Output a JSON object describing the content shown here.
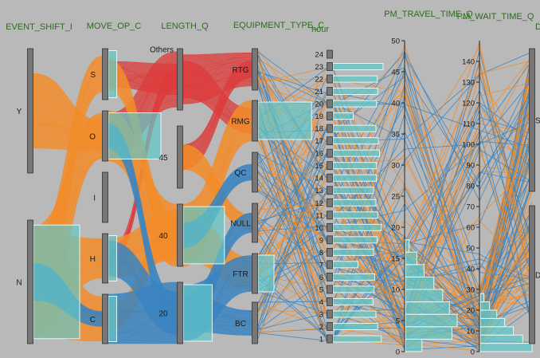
{
  "chart_data": {
    "type": "parallel_coordinates",
    "colors": {
      "orange": "#f28c2a",
      "blue": "#3b84bf",
      "red": "#de3b3b",
      "hist_fill": "#63c7c7",
      "axis_bar": "#777777",
      "background": "#b9b9b9"
    },
    "dimensions": [
      {
        "name": "EVENT_SHIFT_I",
        "kind": "categorical",
        "categories": [
          "Y",
          "N"
        ]
      },
      {
        "name": "MOVE_OP_C",
        "kind": "categorical",
        "categories": [
          "S",
          "O",
          "I",
          "H",
          "C"
        ]
      },
      {
        "name": "LENGTH_Q",
        "kind": "categorical",
        "categories": [
          "Others",
          "45",
          "40",
          "20"
        ]
      },
      {
        "name": "EQUIPMENT_TYPE_C",
        "kind": "categorical",
        "categories": [
          "RTG",
          "RMG",
          "QC",
          "NULL",
          "FTR",
          "BC"
        ]
      },
      {
        "name": "hour",
        "kind": "ordinal",
        "ticks": [
          1,
          2,
          3,
          4,
          5,
          6,
          7,
          8,
          9,
          10,
          11,
          12,
          13,
          14,
          15,
          16,
          17,
          18,
          19,
          20,
          21,
          22,
          23,
          24
        ]
      },
      {
        "name": "PM_TRAVEL_TIME_Q",
        "kind": "numeric",
        "ylim": [
          0,
          50
        ],
        "ticks": [
          0,
          5,
          10,
          15,
          20,
          25,
          30,
          35,
          40,
          45,
          50
        ]
      },
      {
        "name": "PM_WAIT_TIME_Q",
        "kind": "numeric",
        "ylim": [
          0,
          150
        ],
        "ticks": [
          0,
          10,
          20,
          30,
          40,
          50,
          60,
          70,
          80,
          90,
          100,
          110,
          120,
          130,
          140
        ]
      },
      {
        "name": "D",
        "kind": "categorical",
        "categories": [
          "ST",
          "D"
        ]
      }
    ],
    "histograms": {
      "EVENT_SHIFT_I": {
        "Y": 0.0,
        "N": 0.88
      },
      "MOVE_OP_C": {
        "S": 0.16,
        "O": 1.0,
        "I": 0.0,
        "H": 0.16,
        "C": 0.16
      },
      "LENGTH_Q": {
        "Others": 0.0,
        "45": 0.0,
        "40": 0.74,
        "20": 0.52
      },
      "EQUIPMENT_TYPE_C": {
        "RTG": 0.0,
        "RMG": 0.84,
        "QC": 0.0,
        "NULL": 0.0,
        "FTR": 0.25,
        "BC": 0.0
      },
      "hour": [
        0.81,
        0.75,
        0.72,
        0.67,
        0.69,
        0.7,
        0.42,
        0.68,
        0.74,
        0.81,
        0.75,
        0.72,
        0.68,
        0.73,
        0.73,
        0.78,
        0.76,
        0.72,
        0.34,
        0.73,
        0.75,
        0.74,
        0.84,
        0.0
      ],
      "PM_TRAVEL_TIME_Q": [
        {
          "lo": 0,
          "hi": 2,
          "v": 0.32
        },
        {
          "lo": 2,
          "hi": 4,
          "v": 0.9
        },
        {
          "lo": 4,
          "hi": 6,
          "v": 1.0
        },
        {
          "lo": 6,
          "hi": 8,
          "v": 0.85
        },
        {
          "lo": 8,
          "hi": 10,
          "v": 0.72
        },
        {
          "lo": 10,
          "hi": 12,
          "v": 0.55
        },
        {
          "lo": 12,
          "hi": 14,
          "v": 0.36
        },
        {
          "lo": 14,
          "hi": 16,
          "v": 0.22
        },
        {
          "lo": 16,
          "hi": 18,
          "v": 0.07
        }
      ],
      "PM_WAIT_TIME_Q": [
        {
          "lo": 0,
          "hi": 4,
          "v": 1.0
        },
        {
          "lo": 4,
          "hi": 8,
          "v": 0.82
        },
        {
          "lo": 8,
          "hi": 12,
          "v": 0.64
        },
        {
          "lo": 12,
          "hi": 16,
          "v": 0.47
        },
        {
          "lo": 16,
          "hi": 20,
          "v": 0.32
        },
        {
          "lo": 20,
          "hi": 24,
          "v": 0.18
        },
        {
          "lo": 24,
          "hi": 28,
          "v": 0.07
        }
      ]
    },
    "ribbons": [
      {
        "series": "red",
        "from": [
          "MOVE_OP_C",
          "S"
        ],
        "to": [
          "LENGTH_Q",
          "Others"
        ],
        "weight": 0.5
      },
      {
        "series": "red",
        "from": [
          "MOVE_OP_C",
          "O"
        ],
        "to": [
          "LENGTH_Q",
          "Others"
        ],
        "weight": 0.9
      },
      {
        "series": "red",
        "from": [
          "MOVE_OP_C",
          "H"
        ],
        "to": [
          "LENGTH_Q",
          "Others"
        ],
        "weight": 0.3
      },
      {
        "series": "red",
        "from": [
          "LENGTH_Q",
          "Others"
        ],
        "to": [
          "EQUIPMENT_TYPE_C",
          "RTG"
        ],
        "weight": 0.8
      },
      {
        "series": "red",
        "from": [
          "LENGTH_Q",
          "Others"
        ],
        "to": [
          "EQUIPMENT_TYPE_C",
          "RMG"
        ],
        "weight": 0.6
      },
      {
        "series": "red",
        "from": [
          "LENGTH_Q",
          "45"
        ],
        "to": [
          "EQUIPMENT_TYPE_C",
          "RTG"
        ],
        "weight": 0.4
      },
      {
        "series": "orange",
        "from": [
          "EVENT_SHIFT_I",
          "Y"
        ],
        "to": [
          "MOVE_OP_C",
          "O"
        ],
        "weight": 0.6
      },
      {
        "series": "orange",
        "from": [
          "EVENT_SHIFT_I",
          "N"
        ],
        "to": [
          "MOVE_OP_C",
          "S"
        ],
        "weight": 0.7
      },
      {
        "series": "orange",
        "from": [
          "EVENT_SHIFT_I",
          "N"
        ],
        "to": [
          "MOVE_OP_C",
          "O"
        ],
        "weight": 0.9
      },
      {
        "series": "orange",
        "from": [
          "EVENT_SHIFT_I",
          "N"
        ],
        "to": [
          "MOVE_OP_C",
          "H"
        ],
        "weight": 0.8
      },
      {
        "series": "orange",
        "from": [
          "EVENT_SHIFT_I",
          "N"
        ],
        "to": [
          "MOVE_OP_C",
          "C"
        ],
        "weight": 0.9
      },
      {
        "series": "orange",
        "from": [
          "MOVE_OP_C",
          "O"
        ],
        "to": [
          "LENGTH_Q",
          "40"
        ],
        "weight": 1.0
      },
      {
        "series": "orange",
        "from": [
          "MOVE_OP_C",
          "S"
        ],
        "to": [
          "LENGTH_Q",
          "40"
        ],
        "weight": 0.6
      },
      {
        "series": "orange",
        "from": [
          "MOVE_OP_C",
          "H"
        ],
        "to": [
          "LENGTH_Q",
          "40"
        ],
        "weight": 0.8
      },
      {
        "series": "orange",
        "from": [
          "MOVE_OP_C",
          "C"
        ],
        "to": [
          "LENGTH_Q",
          "40"
        ],
        "weight": 0.5
      },
      {
        "series": "orange",
        "from": [
          "LENGTH_Q",
          "40"
        ],
        "to": [
          "EQUIPMENT_TYPE_C",
          "RMG"
        ],
        "weight": 1.0
      },
      {
        "series": "orange",
        "from": [
          "LENGTH_Q",
          "40"
        ],
        "to": [
          "EQUIPMENT_TYPE_C",
          "FTR"
        ],
        "weight": 0.8
      },
      {
        "series": "orange",
        "from": [
          "LENGTH_Q",
          "45"
        ],
        "to": [
          "EQUIPMENT_TYPE_C",
          "NULL"
        ],
        "weight": 0.4
      },
      {
        "series": "blue",
        "from": [
          "EVENT_SHIFT_I",
          "N"
        ],
        "to": [
          "MOVE_OP_C",
          "C"
        ],
        "weight": 0.3
      },
      {
        "series": "blue",
        "from": [
          "MOVE_OP_C",
          "O"
        ],
        "to": [
          "LENGTH_Q",
          "20"
        ],
        "weight": 0.5
      },
      {
        "series": "blue",
        "from": [
          "MOVE_OP_C",
          "H"
        ],
        "to": [
          "LENGTH_Q",
          "20"
        ],
        "weight": 0.7
      },
      {
        "series": "blue",
        "from": [
          "MOVE_OP_C",
          "C"
        ],
        "to": [
          "LENGTH_Q",
          "20"
        ],
        "weight": 1.0
      },
      {
        "series": "blue",
        "from": [
          "LENGTH_Q",
          "20"
        ],
        "to": [
          "EQUIPMENT_TYPE_C",
          "FTR"
        ],
        "weight": 0.9
      },
      {
        "series": "blue",
        "from": [
          "LENGTH_Q",
          "20"
        ],
        "to": [
          "EQUIPMENT_TYPE_C",
          "BC"
        ],
        "weight": 0.6
      },
      {
        "series": "blue",
        "from": [
          "LENGTH_Q",
          "20"
        ],
        "to": [
          "EQUIPMENT_TYPE_C",
          "NULL"
        ],
        "weight": 0.5
      },
      {
        "series": "blue",
        "from": [
          "LENGTH_Q",
          "40"
        ],
        "to": [
          "EQUIPMENT_TYPE_C",
          "QC"
        ],
        "weight": 0.4
      }
    ]
  }
}
